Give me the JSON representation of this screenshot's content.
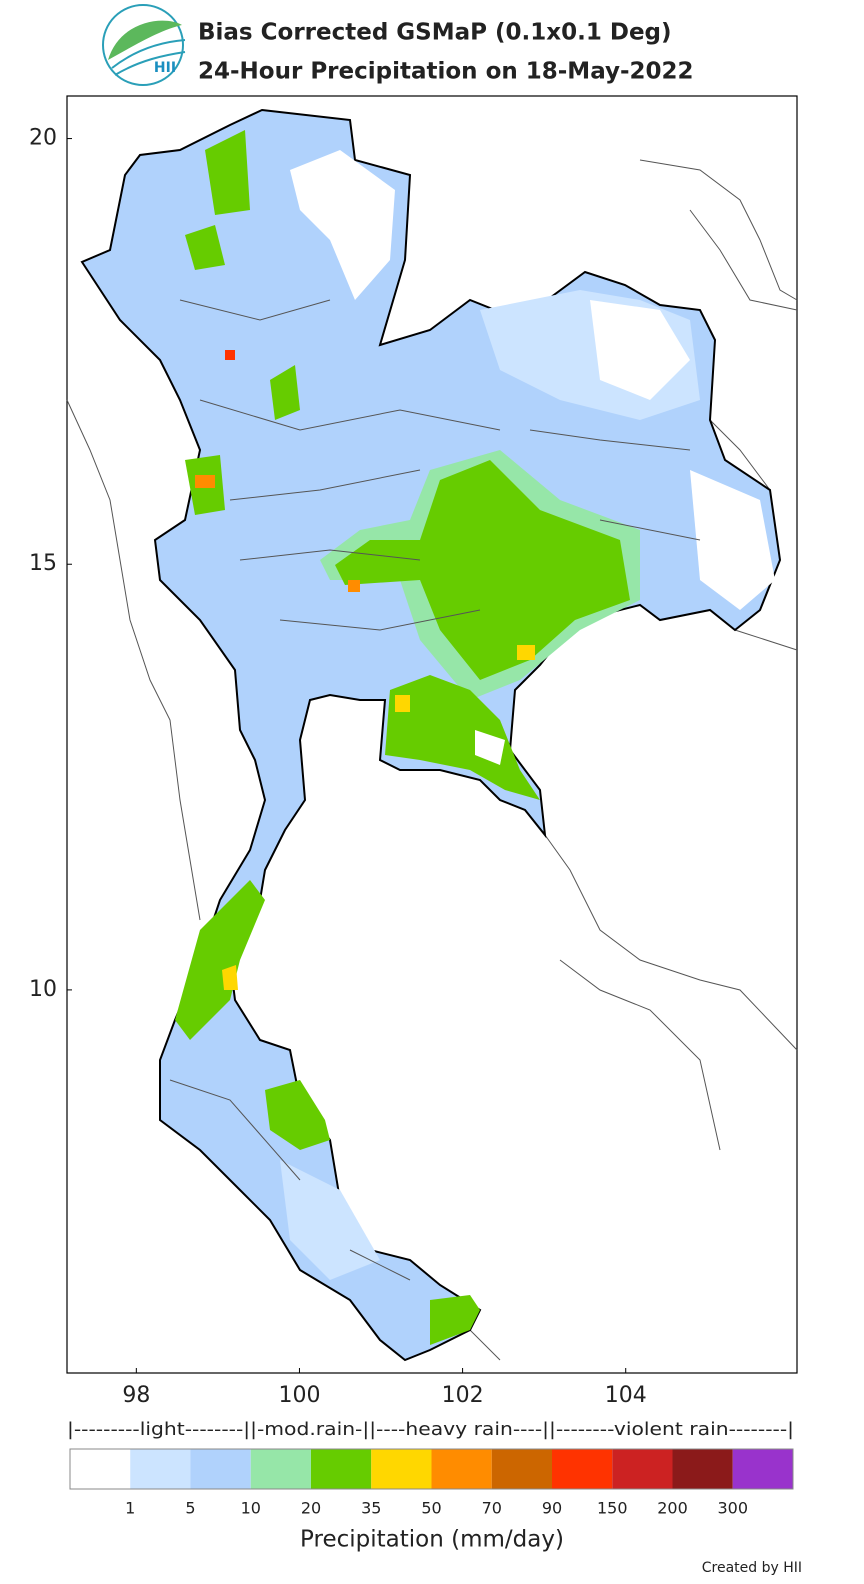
{
  "title": [
    "Bias Corrected GSMaP (0.1x0.1 Deg)",
    "24-Hour Precipitation on 18-May-2022"
  ],
  "logo_text": "HII",
  "map": {
    "xlim": [
      97.15,
      106.1
    ],
    "ylim": [
      5.5,
      20.5
    ],
    "xticks": [
      98,
      100,
      102,
      104
    ],
    "yticks": [
      20,
      15,
      10
    ]
  },
  "legend": {
    "groups": "|---------light--------||-mod.rain-||----heavy rain----||--------violent rain--------|",
    "colors": [
      "#ffffff",
      "#cce4ff",
      "#b0d2fc",
      "#96e6a8",
      "#66cc00",
      "#ffd700",
      "#ff8c00",
      "#cc6600",
      "#ff3300",
      "#cc2222",
      "#8b1a1a",
      "#9933cc"
    ],
    "ticks": [
      1,
      5,
      10,
      20,
      35,
      50,
      70,
      90,
      150,
      200,
      300
    ],
    "label": "Precipitation (mm/day)"
  },
  "credit": "Created by HII"
}
